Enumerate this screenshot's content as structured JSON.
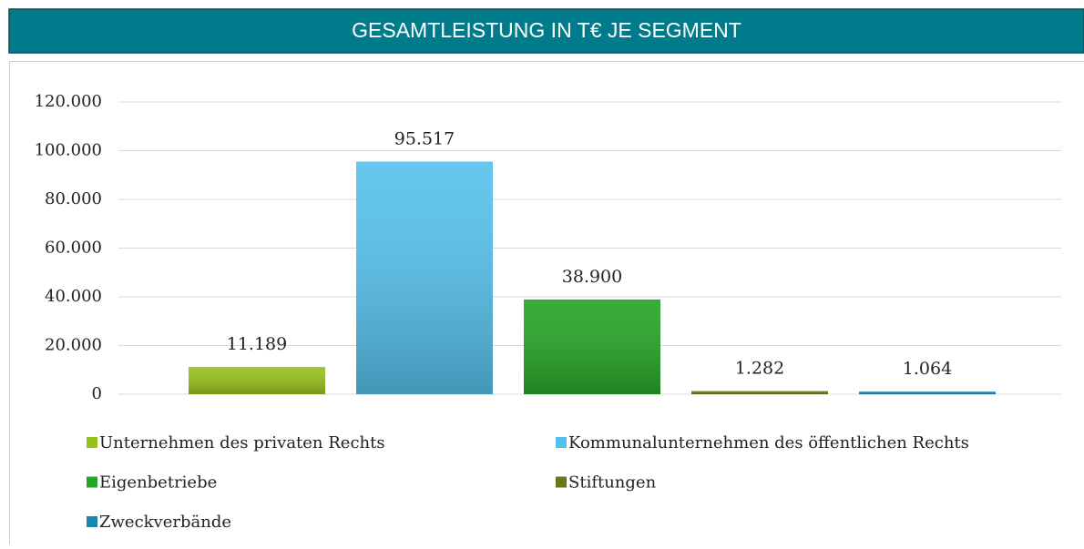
{
  "chart_data": {
    "type": "bar",
    "title": "GESAMTLEISTUNG IN T€ JE SEGMENT",
    "categories": [
      "Unternehmen des privaten Rechts",
      "Kommunalunternehmen des öffentlichen Rechts",
      "Eigenbetriebe",
      "Stiftungen",
      "Zweckverbände"
    ],
    "values": [
      11189,
      95517,
      38900,
      1282,
      1064
    ],
    "value_labels": [
      "11.189",
      "95.517",
      "38.900",
      "1.282",
      "1.064"
    ],
    "colors": [
      "#98c11e",
      "#56c2ec",
      "#27a527",
      "#677a17",
      "#1a86ad"
    ],
    "ylim": [
      0,
      120000
    ],
    "yticks": [
      0,
      {
        "value": 20000,
        "label": "20.000"
      },
      {
        "value": 40000,
        "label": "40.000"
      },
      {
        "value": 60000,
        "label": "60.000"
      },
      {
        "value": 80000,
        "label": "80.000"
      },
      {
        "value": 100000,
        "label": "100.000"
      },
      {
        "value": 120000,
        "label": "120.000"
      }
    ],
    "grid": true,
    "legend": "bottom"
  }
}
